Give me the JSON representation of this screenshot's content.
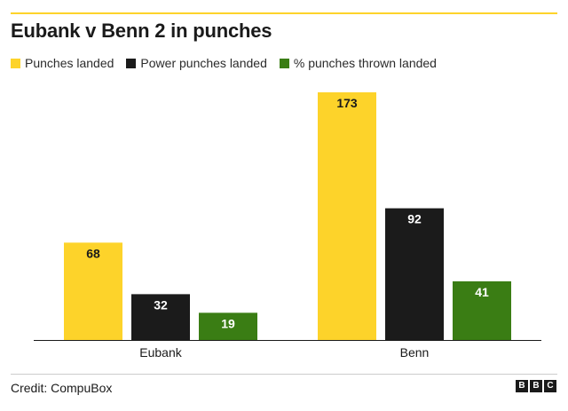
{
  "title": "Eubank v Benn 2 in punches",
  "legend": [
    {
      "label": "Punches landed",
      "color": "#fdd32a"
    },
    {
      "label": "Power punches landed",
      "color": "#1b1b1b"
    },
    {
      "label": "% punches thrown landed",
      "color": "#3a7d14"
    }
  ],
  "chart_data": {
    "type": "bar",
    "categories": [
      "Eubank",
      "Benn"
    ],
    "series": [
      {
        "name": "Punches landed",
        "color": "#fdd32a",
        "label_color": "#1a1a1a",
        "values": [
          68,
          173
        ]
      },
      {
        "name": "Power punches landed",
        "color": "#1b1b1b",
        "label_color": "#ffffff",
        "values": [
          32,
          92
        ]
      },
      {
        "name": "% punches thrown landed",
        "color": "#3a7d14",
        "label_color": "#ffffff",
        "values": [
          19,
          41
        ]
      }
    ],
    "ylim": [
      0,
      173
    ],
    "grid": false,
    "legend_position": "top-left"
  },
  "credit": "Credit: CompuBox",
  "logo": [
    "B",
    "B",
    "C"
  ]
}
